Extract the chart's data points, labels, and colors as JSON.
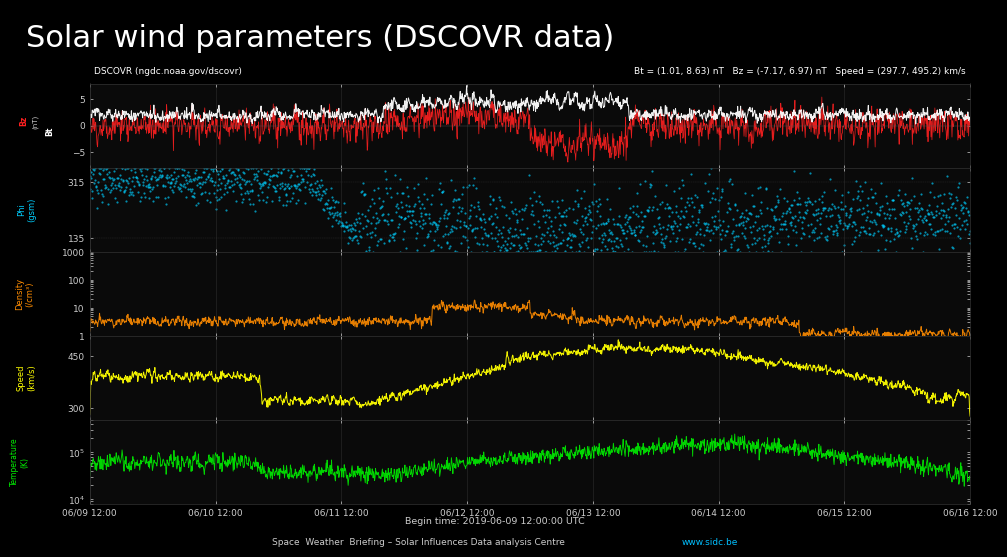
{
  "title": "Solar wind parameters (DSCOVR data)",
  "title_bg": "#00bfff",
  "title_color": "white",
  "title_fontsize": 22,
  "plot_bg": "#0a0a0a",
  "fig_bg": "#000000",
  "header_text": "DSCOVR (ngdc.noaa.gov/dscovr)",
  "header_stats": "Bt = (1.01, 8.63) nT   Bz = (-7.17, 6.97) nT   Speed = (297.7, 495.2) km/s",
  "footer_begin": "Begin time: 2019-06-09 12:00:00 UTC",
  "footer_credit": "Space  Weather  Briefing – Solar Influences Data analysis Centre",
  "footer_url": "www.sidc.be",
  "xtick_labels": [
    "06/09 12:00",
    "06/10 12:00",
    "06/11 12:00",
    "06/12 12:00",
    "06/13 12:00",
    "06/14 12:00",
    "06/15 12:00",
    "06/16 12:00"
  ],
  "n_points": 1800,
  "bz_color": "#ff2020",
  "bt_color": "#ffffff",
  "phi_color": "#00cfff",
  "density_color": "#ff8c00",
  "speed_color": "#ffff00",
  "temp_color": "#00ee00",
  "grid_color": "#444444",
  "tick_color": "#cccccc",
  "tick_fontsize": 6.5,
  "label_fontsize": 6.0,
  "header_fontsize": 6.5
}
